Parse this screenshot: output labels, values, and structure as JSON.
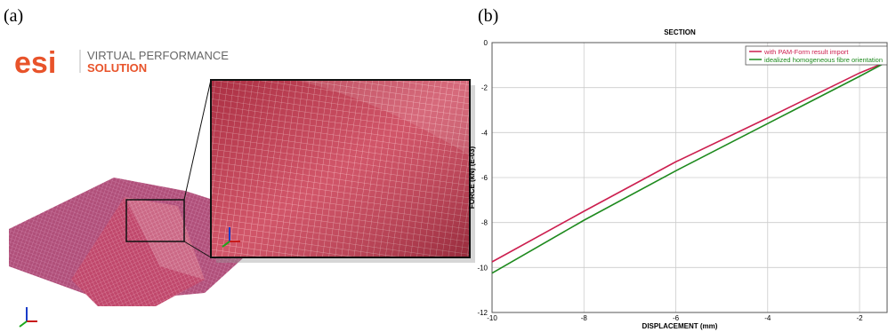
{
  "panels": {
    "a": "(a)",
    "b": "(b)"
  },
  "logo": {
    "brand": "esi",
    "line1": "VIRTUAL PERFORMANCE",
    "line2": "SOLUTION"
  },
  "chart_data": {
    "type": "line",
    "title": "SECTION",
    "x_label": "DISPLACEMENT (mm)",
    "y_label": "FORCE (kN) (E-03)",
    "x": [
      -10,
      -8,
      -6,
      -4,
      -2,
      -1.4
    ],
    "series": [
      {
        "name": "with PAM-Form result import",
        "color": "#cc1f4f",
        "values": [
          -9.75,
          -7.5,
          -5.3,
          -3.35,
          -1.35,
          -0.85
        ]
      },
      {
        "name": "idealized homogeneous fibre orientation",
        "color": "#1e8a1e",
        "values": [
          -10.25,
          -7.9,
          -5.7,
          -3.6,
          -1.5,
          -0.85
        ]
      }
    ],
    "xlim": [
      -10,
      -1.4
    ],
    "xticks": [
      -10,
      -8,
      -6,
      -4,
      -2
    ],
    "ylim": [
      -12,
      0
    ],
    "yticks": [
      0,
      -2,
      -4,
      -6,
      -8,
      -10,
      -12
    ],
    "grid": true,
    "legend": "top-right"
  }
}
